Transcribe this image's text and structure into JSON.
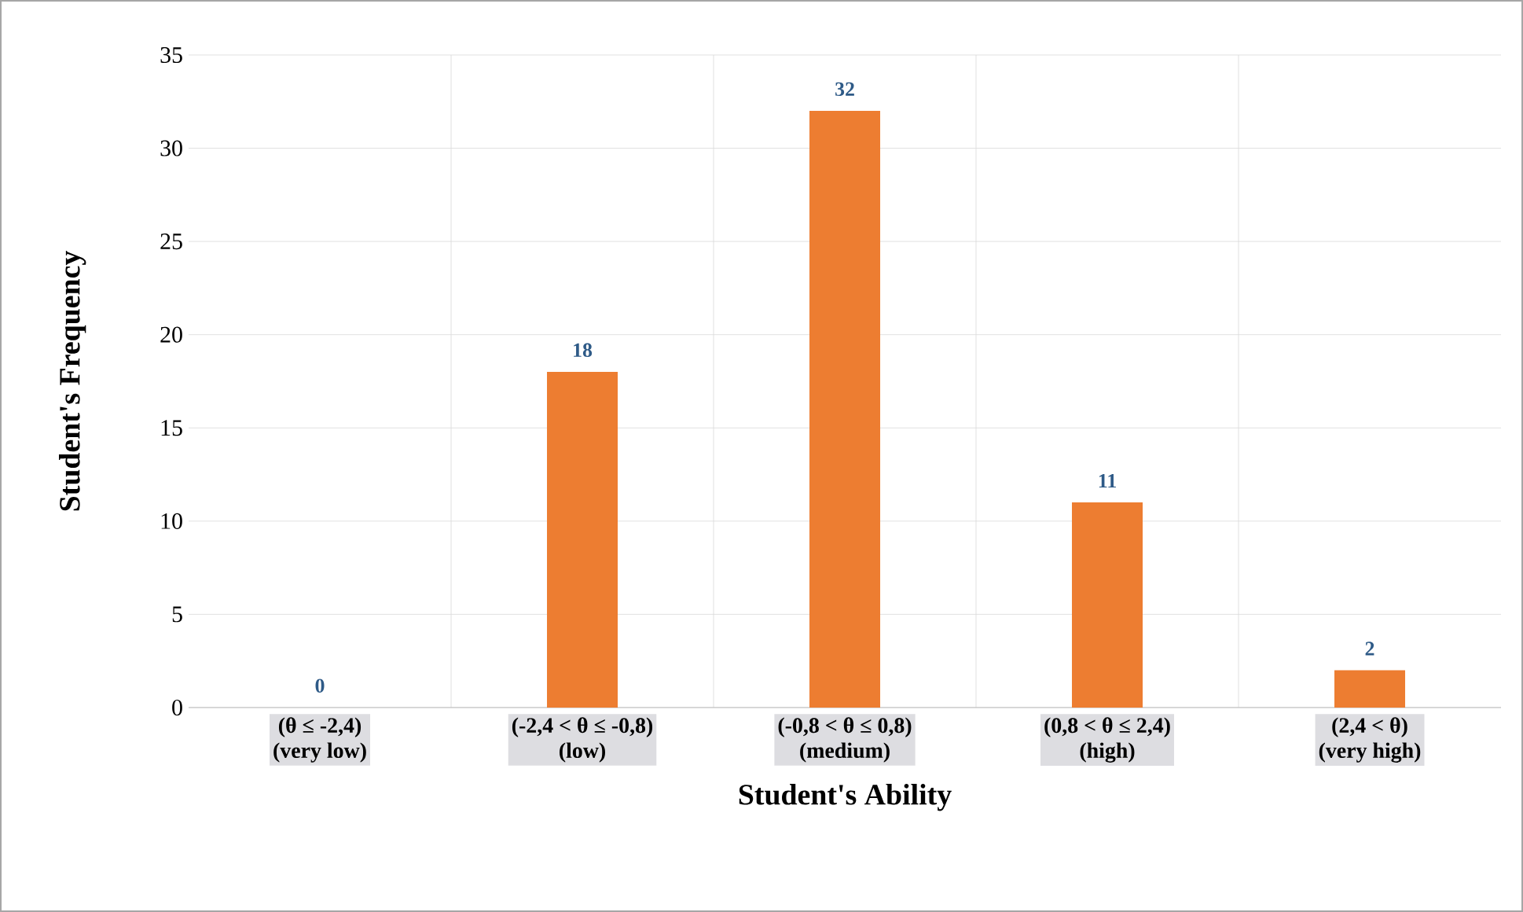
{
  "chart_data": {
    "type": "bar",
    "xlabel": "Student's Ability",
    "ylabel": "Student's Frequency",
    "categories": [
      "(θ ≤ -2,4)\n(very low)",
      "(-2,4 < θ ≤ -0,8)\n(low)",
      "(-0,8 < θ ≤ 0,8)\n(medium)",
      "(0,8 < θ ≤ 2,4)\n(high)",
      "(2,4 < θ)\n(very high)"
    ],
    "values": [
      0,
      18,
      32,
      11,
      2
    ],
    "color": "#ed7d31",
    "ylim": [
      0,
      35
    ],
    "yticks": [
      0,
      5,
      10,
      15,
      20,
      25,
      30,
      35
    ],
    "grid": true,
    "data_labels": true
  }
}
